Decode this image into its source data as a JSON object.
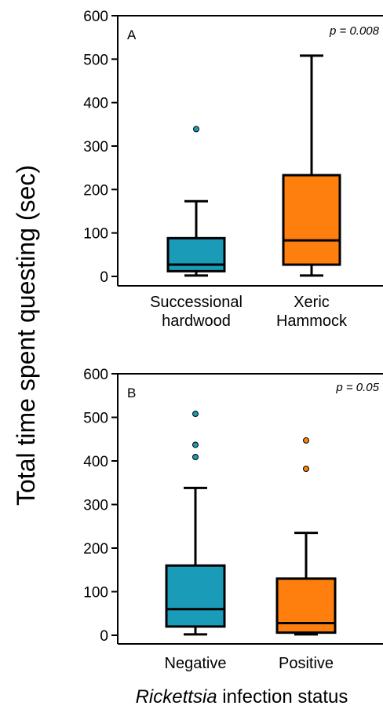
{
  "ylabel": "Total time spent questing (sec)",
  "xlabel_italic": "Rickettsia",
  "xlabel_rest": " infection status",
  "colors": {
    "blue": "#1a9bb8",
    "orange": "#ff7f0e",
    "stroke": "#000000"
  },
  "chart_data": [
    {
      "type": "box",
      "panel": "A",
      "pvalue": "p = 0.008",
      "ylim": [
        0,
        600
      ],
      "yticks": [
        0,
        100,
        200,
        300,
        400,
        500,
        600
      ],
      "categories": [
        [
          "Successional",
          "hardwood"
        ],
        [
          "Xeric",
          "Hammock"
        ]
      ],
      "boxes": [
        {
          "category": "Successional hardwood",
          "color": "#1a9bb8",
          "whisker_low": 2,
          "q1": 12,
          "median": 27,
          "q3": 88,
          "whisker_high": 173,
          "outliers": [
            339
          ]
        },
        {
          "category": "Xeric Hammock",
          "color": "#ff7f0e",
          "whisker_low": 2,
          "q1": 27,
          "median": 83,
          "q3": 233,
          "whisker_high": 508,
          "outliers": []
        }
      ]
    },
    {
      "type": "box",
      "panel": "B",
      "pvalue": "p = 0.05",
      "ylim": [
        0,
        600
      ],
      "yticks": [
        0,
        100,
        200,
        300,
        400,
        500,
        600
      ],
      "categories": [
        [
          "Negative"
        ],
        [
          "Positive"
        ]
      ],
      "boxes": [
        {
          "category": "Negative",
          "color": "#1a9bb8",
          "whisker_low": 2,
          "q1": 20,
          "median": 60,
          "q3": 160,
          "whisker_high": 338,
          "outliers": [
            409,
            437,
            508
          ]
        },
        {
          "category": "Positive",
          "color": "#ff7f0e",
          "whisker_low": 2,
          "q1": 6,
          "median": 28,
          "q3": 130,
          "whisker_high": 235,
          "outliers": [
            382,
            447
          ]
        }
      ]
    }
  ]
}
